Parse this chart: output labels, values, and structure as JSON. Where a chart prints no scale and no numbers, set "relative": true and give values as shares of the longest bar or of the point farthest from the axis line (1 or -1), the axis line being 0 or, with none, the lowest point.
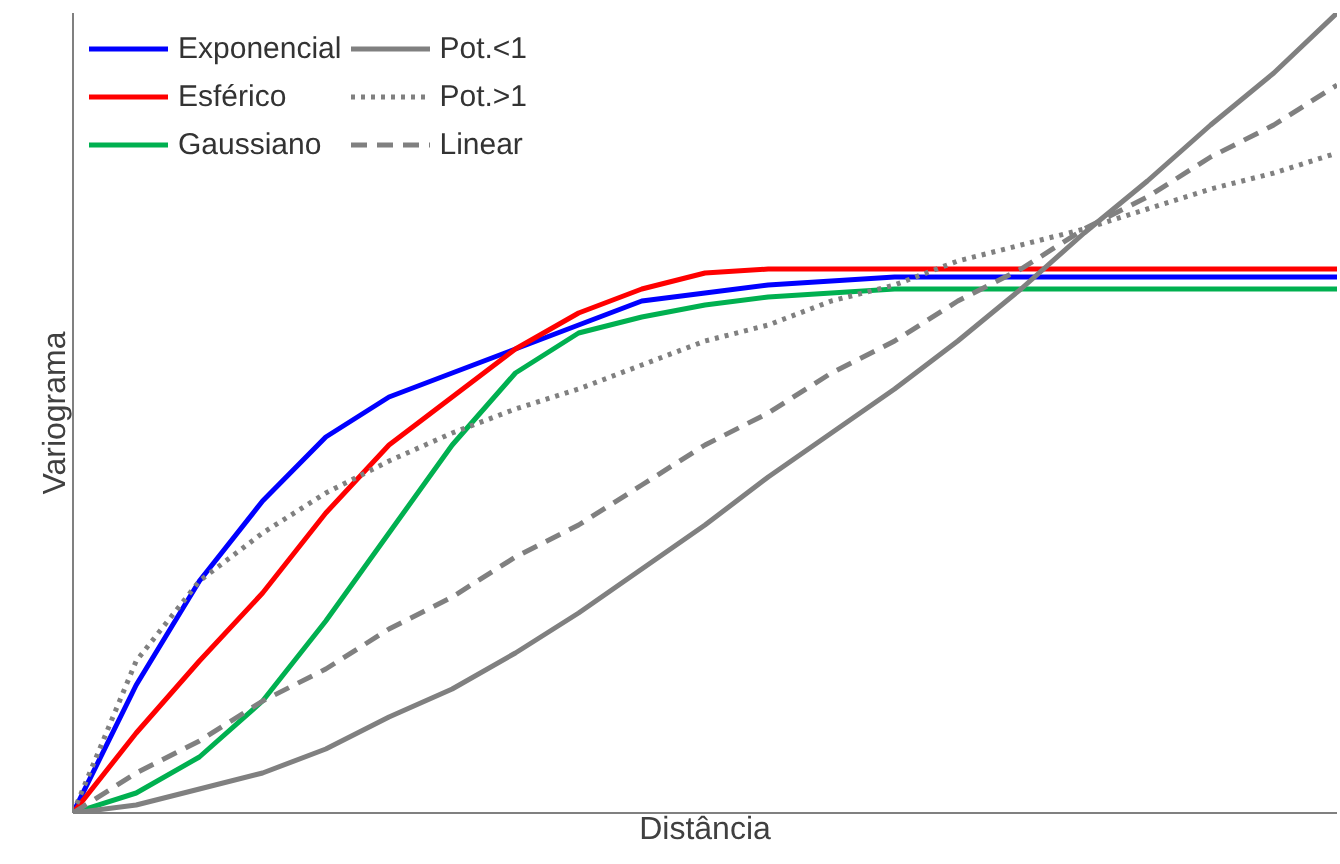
{
  "chart_data": {
    "type": "line",
    "relative": true,
    "xlabel": "Distância",
    "ylabel": "Variograma",
    "legend": "top left",
    "grid": false,
    "marker": "none",
    "categories": [
      null,
      null,
      null,
      null,
      null,
      null,
      null,
      null,
      null,
      null,
      null,
      null,
      null,
      null,
      null,
      null,
      null,
      null,
      null,
      null,
      null
    ],
    "series": [
      {
        "name": "Exponencial",
        "color": "#0000ff",
        "line_style": "solid",
        "values": [
          0,
          0.16,
          0.29,
          0.39,
          0.47,
          0.52,
          0.55,
          0.58,
          0.61,
          0.64,
          0.65,
          0.66,
          0.665,
          0.67,
          0.67,
          0.67,
          0.67,
          0.67,
          0.67,
          0.67,
          0.67
        ]
      },
      {
        "name": "Esférico",
        "color": "#ff0000",
        "line_style": "solid",
        "values": [
          0,
          0.1,
          0.19,
          0.275,
          0.375,
          0.46,
          0.52,
          0.58,
          0.625,
          0.655,
          0.675,
          0.68,
          0.68,
          0.68,
          0.68,
          0.68,
          0.68,
          0.68,
          0.68,
          0.68,
          0.68
        ]
      },
      {
        "name": "Gaussiano",
        "color": "#00b050",
        "line_style": "solid",
        "values": [
          0,
          0.025,
          0.07,
          0.14,
          0.24,
          0.35,
          0.46,
          0.55,
          0.6,
          0.62,
          0.635,
          0.645,
          0.65,
          0.655,
          0.655,
          0.655,
          0.655,
          0.655,
          0.655,
          0.655,
          0.655
        ]
      },
      {
        "name": "Pot.<1",
        "color": "#808080",
        "line_style": "solid",
        "values": [
          0,
          0.01,
          0.03,
          0.05,
          0.08,
          0.12,
          0.155,
          0.2,
          0.25,
          0.305,
          0.36,
          0.42,
          0.475,
          0.53,
          0.59,
          0.655,
          0.725,
          0.79,
          0.86,
          0.925,
          1.0
        ]
      },
      {
        "name": "Pot.>1",
        "color": "#808080",
        "line_style": "dotted",
        "values": [
          0,
          0.19,
          0.29,
          0.35,
          0.4,
          0.44,
          0.475,
          0.505,
          0.53,
          0.56,
          0.59,
          0.61,
          0.64,
          0.66,
          0.69,
          0.71,
          0.73,
          0.755,
          0.78,
          0.8,
          0.825
        ]
      },
      {
        "name": "Linear",
        "color": "#808080",
        "line_style": "dashed",
        "values": [
          0,
          0.05,
          0.09,
          0.14,
          0.18,
          0.23,
          0.27,
          0.32,
          0.36,
          0.41,
          0.46,
          0.5,
          0.55,
          0.59,
          0.64,
          0.68,
          0.73,
          0.77,
          0.82,
          0.86,
          0.91
        ]
      }
    ]
  }
}
